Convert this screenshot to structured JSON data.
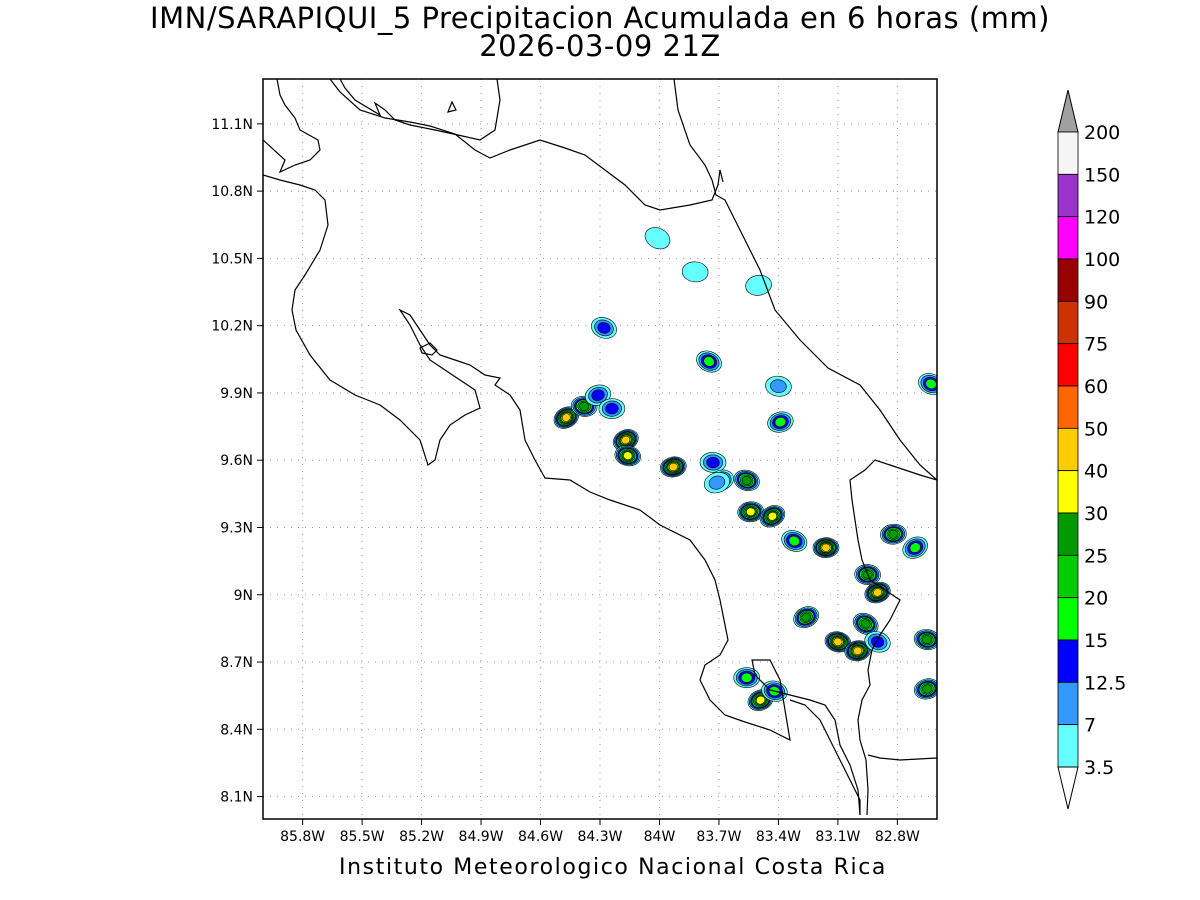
{
  "title": {
    "line1": "IMN/SARAPIQUI_5 Precipitacion Acumulada en 6 horas (mm)",
    "line2": "2026-03-09 21Z"
  },
  "footer": "Instituto Meteorologico Nacional Costa Rica",
  "map": {
    "lon_range": [
      -86.0,
      -82.6
    ],
    "lat_range": [
      8.0,
      11.3
    ],
    "lon_ticks": [
      "85.8W",
      "85.5W",
      "85.2W",
      "84.9W",
      "84.6W",
      "84.3W",
      "84W",
      "83.7W",
      "83.4W",
      "83.1W",
      "82.8W"
    ],
    "lat_ticks": [
      "8.1N",
      "8.4N",
      "8.7N",
      "9N",
      "9.3N",
      "9.6N",
      "9.9N",
      "10.2N",
      "10.5N",
      "10.8N",
      "11.1N"
    ],
    "grid": "dotted"
  },
  "colorbar": {
    "labels": [
      "200",
      "150",
      "120",
      "100",
      "90",
      "75",
      "60",
      "50",
      "40",
      "30",
      "25",
      "20",
      "15",
      "12.5",
      "7",
      "3.5"
    ],
    "colors": [
      "#f5f5f5",
      "#9933cc",
      "#ff00ff",
      "#990000",
      "#cc3300",
      "#ff0000",
      "#ff6600",
      "#ffcc00",
      "#ffff00",
      "#009900",
      "#00cc00",
      "#00ff00",
      "#0000ff",
      "#3399ff",
      "#66ffff"
    ],
    "top_arrow_color": "#a0a0a0",
    "bottom_arrow_color": "#ffffff"
  },
  "rain_cells": [
    {
      "lon": -84.47,
      "lat": 9.79,
      "peak": 40
    },
    {
      "lon": -84.38,
      "lat": 9.84,
      "peak": 25
    },
    {
      "lon": -84.31,
      "lat": 9.89,
      "peak": 12.5
    },
    {
      "lon": -84.28,
      "lat": 10.19,
      "peak": 12.5
    },
    {
      "lon": -84.24,
      "lat": 9.83,
      "peak": 12.5
    },
    {
      "lon": -84.17,
      "lat": 9.69,
      "peak": 40
    },
    {
      "lon": -84.16,
      "lat": 9.62,
      "peak": 30
    },
    {
      "lon": -83.93,
      "lat": 9.57,
      "peak": 40
    },
    {
      "lon": -83.75,
      "lat": 10.04,
      "peak": 15
    },
    {
      "lon": -83.73,
      "lat": 9.59,
      "peak": 12.5
    },
    {
      "lon": -83.69,
      "lat": 9.51,
      "peak": 15
    },
    {
      "lon": -83.56,
      "lat": 9.51,
      "peak": 25
    },
    {
      "lon": -83.54,
      "lat": 9.37,
      "peak": 30
    },
    {
      "lon": -83.43,
      "lat": 9.35,
      "peak": 30
    },
    {
      "lon": -83.4,
      "lat": 9.93,
      "peak": 7
    },
    {
      "lon": -83.39,
      "lat": 9.77,
      "peak": 15
    },
    {
      "lon": -83.32,
      "lat": 9.24,
      "peak": 15
    },
    {
      "lon": -83.16,
      "lat": 9.21,
      "peak": 40
    },
    {
      "lon": -83.26,
      "lat": 8.9,
      "peak": 25
    },
    {
      "lon": -83.1,
      "lat": 8.79,
      "peak": 40
    },
    {
      "lon": -83.0,
      "lat": 8.75,
      "peak": 40
    },
    {
      "lon": -82.96,
      "lat": 8.87,
      "peak": 25
    },
    {
      "lon": -82.95,
      "lat": 9.09,
      "peak": 25
    },
    {
      "lon": -82.9,
      "lat": 9.01,
      "peak": 40
    },
    {
      "lon": -82.9,
      "lat": 8.79,
      "peak": 12.5
    },
    {
      "lon": -82.82,
      "lat": 9.27,
      "peak": 25
    },
    {
      "lon": -82.71,
      "lat": 9.21,
      "peak": 15
    },
    {
      "lon": -82.65,
      "lat": 8.8,
      "peak": 25
    },
    {
      "lon": -82.65,
      "lat": 8.58,
      "peak": 25
    },
    {
      "lon": -82.63,
      "lat": 9.94,
      "peak": 15
    },
    {
      "lon": -83.56,
      "lat": 8.63,
      "peak": 15
    },
    {
      "lon": -83.49,
      "lat": 8.53,
      "peak": 30
    },
    {
      "lon": -83.42,
      "lat": 8.57,
      "peak": 15
    },
    {
      "lon": -83.5,
      "lat": 10.38,
      "peak": 3.5
    },
    {
      "lon": -84.01,
      "lat": 10.59,
      "peak": 3.5
    },
    {
      "lon": -83.82,
      "lat": 10.44,
      "peak": 3.5
    },
    {
      "lon": -83.71,
      "lat": 9.5,
      "peak": 7
    }
  ]
}
